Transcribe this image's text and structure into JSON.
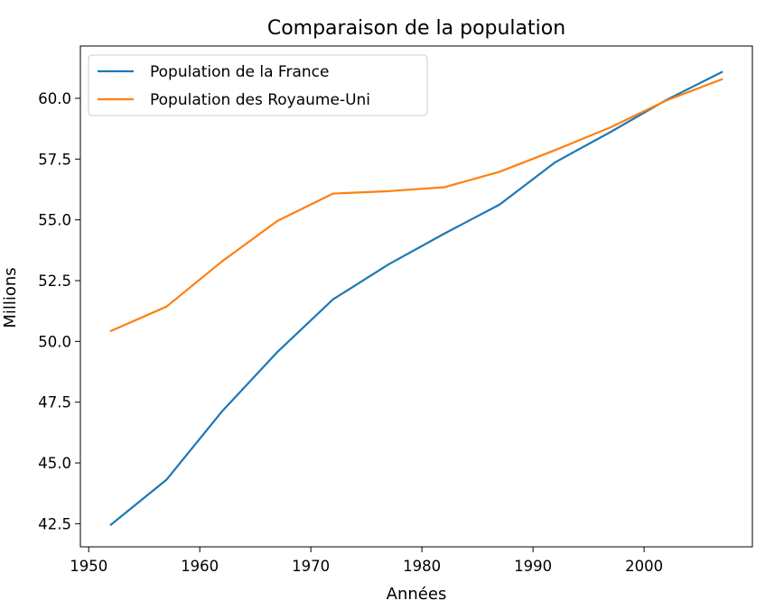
{
  "chart_data": {
    "type": "line",
    "title": "Comparaison de la population",
    "xlabel": "Années",
    "ylabel": "Millions",
    "xlim": [
      1949.25,
      2009.75
    ],
    "ylim": [
      41.55,
      62.15
    ],
    "xticks": [
      1950,
      1960,
      1970,
      1980,
      1990,
      2000
    ],
    "yticks": [
      42.5,
      45.0,
      47.5,
      50.0,
      52.5,
      55.0,
      57.5,
      60.0
    ],
    "ytick_labels": [
      "42.5",
      "45.0",
      "47.5",
      "50.0",
      "52.5",
      "55.0",
      "57.5",
      "60.0"
    ],
    "grid": false,
    "legend_position": "top-left",
    "x": [
      1952,
      1957,
      1962,
      1967,
      1972,
      1977,
      1982,
      1987,
      1992,
      1997,
      2002,
      2007
    ],
    "series": [
      {
        "name": "Population de la France",
        "color": "#1f77b4",
        "values": [
          42.46,
          44.31,
          47.12,
          49.57,
          51.73,
          53.17,
          54.43,
          55.63,
          57.37,
          58.62,
          59.93,
          61.08
        ]
      },
      {
        "name": "Population des Royaume-Uni",
        "color": "#ff7f0e",
        "values": [
          50.43,
          51.43,
          53.29,
          54.96,
          56.08,
          56.18,
          56.34,
          56.98,
          57.87,
          58.81,
          59.91,
          60.78
        ]
      }
    ]
  }
}
